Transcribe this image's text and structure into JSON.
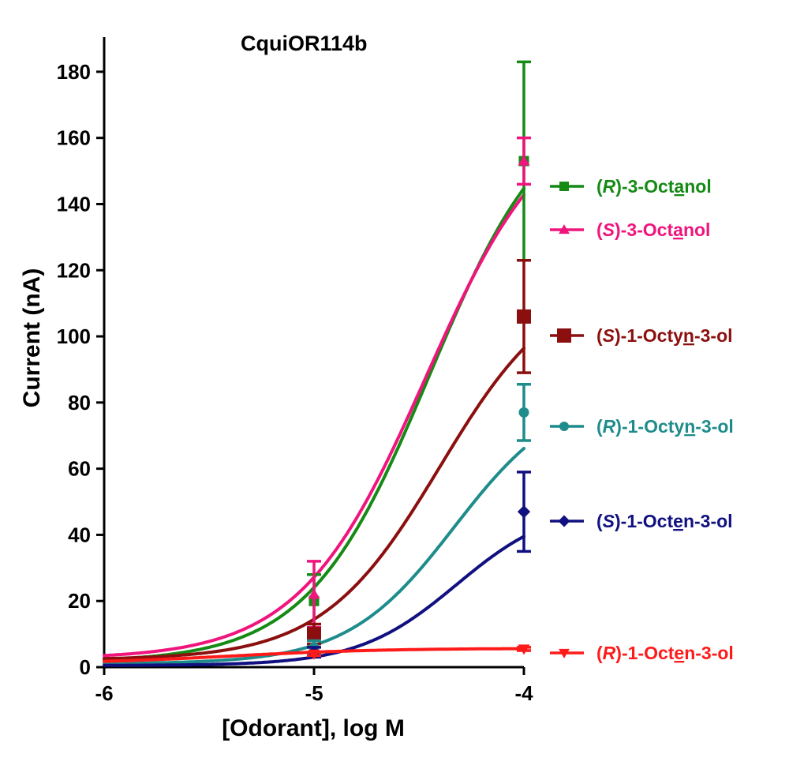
{
  "chart_data": {
    "type": "line",
    "title": "CquiOR114b",
    "xlabel": "[Odorant], log M",
    "ylabel": "Current (nA)",
    "xlim": [
      -6,
      -4
    ],
    "ylim": [
      0,
      190
    ],
    "x_ticks": [
      -6,
      -5,
      -4
    ],
    "x_tick_labels": [
      "-6",
      "-5",
      "-4"
    ],
    "y_ticks": [
      0,
      20,
      40,
      60,
      80,
      100,
      120,
      140,
      160,
      180
    ],
    "y_tick_labels": [
      "0",
      "20",
      "40",
      "60",
      "80",
      "100",
      "120",
      "140",
      "160",
      "180"
    ],
    "grid": false,
    "legend_position": "right",
    "series": [
      {
        "name": "(R)-3-Octanol",
        "prefix": "(",
        "stereo": "R",
        "mid": ")-3-Oct",
        "underlined": "a",
        "suffix": "nol",
        "color": "#158a15",
        "marker": "square",
        "x": [
          -6,
          -5,
          -4
        ],
        "y": [
          1.5,
          20,
          153
        ],
        "err": [
          0,
          8,
          30
        ],
        "curve": {
          "bottom": 1.5,
          "top": 175,
          "logEC50": -4.45,
          "hill": 1.5
        }
      },
      {
        "name": "(S)-3-Octanol",
        "prefix": "(",
        "stereo": "S",
        "mid": ")-3-Oct",
        "underlined": "a",
        "suffix": "nol",
        "color": "#f0147d",
        "marker": "triangle-up",
        "x": [
          -6,
          -5,
          -4
        ],
        "y": [
          3,
          22,
          153
        ],
        "err": [
          0,
          10,
          7
        ],
        "curve": {
          "bottom": 2.5,
          "top": 172,
          "logEC50": -4.47,
          "hill": 1.45
        }
      },
      {
        "name": "(S)-1-Octyn-3-ol",
        "prefix": "(",
        "stereo": "S",
        "mid": ")-1-Octy",
        "underlined": "n",
        "suffix": "-3-ol",
        "color": "#8b0f0f",
        "marker": "square",
        "x": [
          -6,
          -5,
          -4
        ],
        "y": [
          2,
          10,
          106
        ],
        "err": [
          0,
          3,
          17
        ],
        "curve": {
          "bottom": 2.2,
          "top": 119,
          "logEC50": -4.4,
          "hill": 1.55
        }
      },
      {
        "name": "(R)-1-Octyn-3-ol",
        "prefix": "(",
        "stereo": "R",
        "mid": ")-1-Octy",
        "underlined": "n",
        "suffix": "-3-ol",
        "color": "#1f8c8c",
        "marker": "circle",
        "x": [
          -6,
          -5,
          -4
        ],
        "y": [
          1,
          6,
          77
        ],
        "err": [
          0,
          2,
          8.5
        ],
        "curve": {
          "bottom": 1,
          "top": 84,
          "logEC50": -4.33,
          "hill": 1.7
        }
      },
      {
        "name": "(S)-1-Octen-3-ol",
        "prefix": "(",
        "stereo": "S",
        "mid": ")-1-Oct",
        "underlined": "e",
        "suffix": "n-3-ol",
        "color": "#101080",
        "marker": "diamond",
        "x": [
          -6,
          -5,
          -4
        ],
        "y": [
          1,
          4.5,
          47
        ],
        "err": [
          0,
          1.5,
          12
        ],
        "curve": {
          "bottom": 0.5,
          "top": 49.5,
          "logEC50": -4.32,
          "hill": 1.85
        }
      },
      {
        "name": "(R)-1-Octen-3-ol",
        "prefix": "(",
        "stereo": "R",
        "mid": ")-1-Oct",
        "underlined": "e",
        "suffix": "n-3-ol",
        "color": "#ff1a1a",
        "marker": "triangle-down",
        "x": [
          -6,
          -5,
          -4
        ],
        "y": [
          2,
          4,
          5.5
        ],
        "err": [
          0,
          0.5,
          0.5
        ],
        "curve": {
          "bottom": 1,
          "top": 5.7,
          "logEC50": -5.4,
          "hill": 1.2
        }
      }
    ]
  }
}
